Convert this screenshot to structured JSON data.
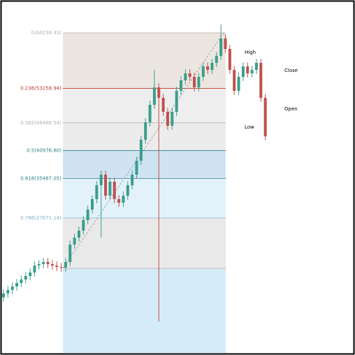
{
  "chart_data": {
    "type": "candlestick",
    "categories": [
      null,
      null,
      null,
      null,
      null,
      null,
      null,
      null,
      null,
      null,
      null,
      null,
      null,
      null,
      null,
      null,
      null,
      null,
      null,
      null,
      null,
      null,
      null,
      null,
      null,
      null,
      null,
      null,
      null,
      null,
      null,
      null,
      null,
      null,
      null,
      null,
      null,
      null,
      null,
      null,
      null,
      null,
      null,
      null,
      null,
      null,
      null,
      null,
      null,
      null,
      null,
      null,
      null,
      null,
      null,
      null,
      null,
      null,
      null,
      null
    ],
    "open": [
      12000,
      12764,
      13454,
      14144,
      14834,
      15524,
      16214,
      16904,
      18284,
      18560,
      18974,
      18560,
      18284,
      18008,
      17870,
      18974,
      22424,
      23804,
      25184,
      27254,
      29324,
      31394,
      34154,
      36224,
      32084,
      34844,
      31394,
      30704,
      32084,
      34154,
      36224,
      38984,
      43124,
      46574,
      50024,
      53474,
      51404,
      48644,
      45884,
      48644,
      52784,
      54854,
      56234,
      55544,
      53474,
      55544,
      57614,
      56924,
      58304,
      59684,
      63134,
      61064,
      56924,
      52784,
      55544,
      57614,
      56234,
      56924,
      58304,
      51404
    ],
    "high": [
      13564,
      14254,
      14944,
      15634,
      16324,
      17014,
      17704,
      19084,
      19360,
      19774,
      19774,
      19360,
      19084,
      18808,
      19774,
      23224,
      24604,
      25984,
      28054,
      30124,
      32194,
      34954,
      37024,
      37024,
      35644,
      35644,
      32194,
      32884,
      34954,
      37024,
      39784,
      43924,
      47374,
      50824,
      56924,
      54274,
      52204,
      49444,
      49444,
      53584,
      55654,
      57034,
      57034,
      56344,
      56344,
      58414,
      58414,
      59104,
      60484,
      65894,
      63934,
      61864,
      57724,
      56344,
      58414,
      58414,
      57724,
      59104,
      59104,
      52204
    ],
    "low": [
      11200,
      11964,
      12654,
      13344,
      14034,
      14724,
      15414,
      16104,
      17484,
      17760,
      17760,
      17484,
      17208,
      17070,
      17070,
      18174,
      21624,
      23004,
      24384,
      26454,
      28524,
      30594,
      23804,
      31284,
      31284,
      30594,
      29904,
      29904,
      31284,
      33354,
      35424,
      38184,
      42324,
      45774,
      49224,
      7244,
      47844,
      45084,
      45084,
      47844,
      51984,
      54054,
      54744,
      52674,
      52674,
      54744,
      56124,
      56124,
      57504,
      58884,
      60264,
      56124,
      51984,
      51984,
      54744,
      55434,
      55434,
      56124,
      50604,
      43014
    ],
    "close": [
      12764,
      13454,
      14144,
      14834,
      15524,
      16214,
      16904,
      18284,
      18560,
      18974,
      18560,
      18284,
      18008,
      17870,
      18974,
      22424,
      23804,
      25184,
      27254,
      29324,
      31394,
      34154,
      36224,
      32084,
      34844,
      31394,
      30704,
      32084,
      34154,
      36224,
      38984,
      43124,
      46574,
      50024,
      53474,
      51404,
      48644,
      45884,
      48644,
      52784,
      54854,
      56234,
      55544,
      53474,
      55544,
      57614,
      56924,
      58304,
      59684,
      63134,
      61064,
      56924,
      52784,
      55544,
      57614,
      56234,
      56924,
      58304,
      51404,
      43814
    ],
    "up_color": "#3a9e8c",
    "down_color": "#c0504d",
    "ylim": [
      620,
      70724
    ],
    "fib": {
      "levels": [
        0,
        0.236,
        0.382,
        0.5,
        0.618,
        0.786,
        1
      ],
      "prices": [
        64238.43,
        53258.94,
        46466.54,
        40976.8,
        35487.05,
        27671.14,
        17715.17
      ],
      "labels": [
        "0(64238.43)",
        "0.236(53258.94)",
        "0.382(46466.54)",
        "0.5(40976.80)",
        "0.618(35487.05)",
        "0.786(27671.14)",
        null
      ],
      "line_colors": [
        "#b0b0b0",
        "#c0392b",
        "#b0b0b0",
        "#2f7f8a",
        "#2f7f8a",
        "#7fb3c8",
        "#b0b0b0"
      ],
      "band_colors": [
        "#ece6e0",
        "#eeeeee",
        "#ececec",
        "#cfe3f1",
        "#e2f1fa",
        "#e9e9e9",
        "#d6ebf8"
      ]
    },
    "annotations": [
      "High",
      "Close",
      "Open",
      "Low"
    ]
  }
}
